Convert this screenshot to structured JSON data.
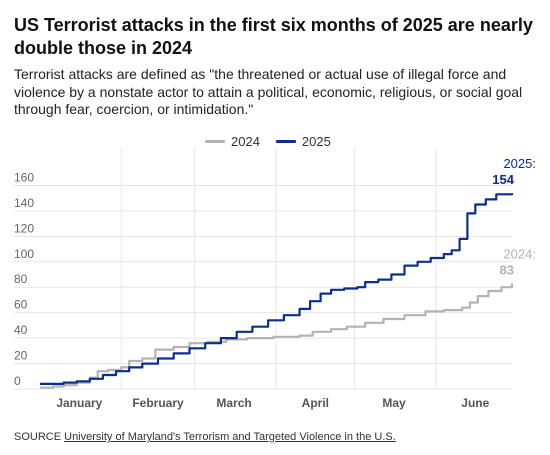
{
  "title": "US Terrorist attacks in the first six months of 2025 are nearly double those in 2024",
  "subtitle": "Terrorist attacks are defined as \"the threatened or actual use of illegal force and violence by a nonstate actor to attain a political, economic, religious, or social goal through fear, coercion, or intimidation.\"",
  "source": {
    "prefix": "SOURCE",
    "link_text": "University of Maryland's Terrorism and Targeted Violence in the U.S."
  },
  "colors": {
    "series_2024": "#b3b3b3",
    "series_2025": "#0b2e8f",
    "grid": "#e6e6e6"
  },
  "chart_data": {
    "type": "line",
    "title": "US Terrorist attacks in the first six months of 2025 are nearly double those in 2024",
    "xlabel": "",
    "ylabel": "",
    "ylim": [
      0,
      180
    ],
    "xlim": [
      1,
      181
    ],
    "yticks": [
      0,
      20,
      40,
      60,
      80,
      100,
      120,
      140,
      160
    ],
    "xticks": [
      {
        "label": "January",
        "day": 16
      },
      {
        "label": "February",
        "day": 46
      },
      {
        "label": "March",
        "day": 75
      },
      {
        "label": "April",
        "day": 106
      },
      {
        "label": "May",
        "day": 136
      },
      {
        "label": "June",
        "day": 167
      }
    ],
    "grid": true,
    "legend": "top-center",
    "series": [
      {
        "name": "2024",
        "end_label": "2024:",
        "end_value": "83",
        "points": [
          [
            1,
            1
          ],
          [
            6,
            2
          ],
          [
            10,
            3
          ],
          [
            15,
            5
          ],
          [
            20,
            9
          ],
          [
            23,
            14
          ],
          [
            27,
            15
          ],
          [
            32,
            17
          ],
          [
            35,
            22
          ],
          [
            40,
            24
          ],
          [
            45,
            31
          ],
          [
            52,
            33
          ],
          [
            58,
            36
          ],
          [
            65,
            37
          ],
          [
            72,
            39
          ],
          [
            80,
            40
          ],
          [
            90,
            41
          ],
          [
            100,
            42
          ],
          [
            105,
            45
          ],
          [
            112,
            47
          ],
          [
            118,
            49
          ],
          [
            125,
            52
          ],
          [
            132,
            55
          ],
          [
            140,
            58
          ],
          [
            148,
            61
          ],
          [
            155,
            62
          ],
          [
            162,
            64
          ],
          [
            165,
            68
          ],
          [
            168,
            73
          ],
          [
            172,
            77
          ],
          [
            177,
            80
          ],
          [
            181,
            83
          ]
        ]
      },
      {
        "name": "2025",
        "end_label": "2025:",
        "end_value": "154",
        "points": [
          [
            1,
            4
          ],
          [
            6,
            4
          ],
          [
            10,
            5
          ],
          [
            15,
            6
          ],
          [
            20,
            8
          ],
          [
            25,
            11
          ],
          [
            30,
            14
          ],
          [
            35,
            17
          ],
          [
            40,
            20
          ],
          [
            46,
            24
          ],
          [
            52,
            28
          ],
          [
            58,
            32
          ],
          [
            64,
            36
          ],
          [
            70,
            40
          ],
          [
            76,
            45
          ],
          [
            82,
            49
          ],
          [
            88,
            54
          ],
          [
            94,
            58
          ],
          [
            100,
            63
          ],
          [
            104,
            69
          ],
          [
            108,
            75
          ],
          [
            112,
            78
          ],
          [
            117,
            79
          ],
          [
            122,
            80
          ],
          [
            125,
            84
          ],
          [
            130,
            86
          ],
          [
            135,
            90
          ],
          [
            140,
            97
          ],
          [
            145,
            100
          ],
          [
            150,
            103
          ],
          [
            155,
            106
          ],
          [
            158,
            109
          ],
          [
            161,
            118
          ],
          [
            164,
            138
          ],
          [
            167,
            145
          ],
          [
            171,
            149
          ],
          [
            175,
            153
          ],
          [
            181,
            154
          ]
        ]
      }
    ]
  }
}
